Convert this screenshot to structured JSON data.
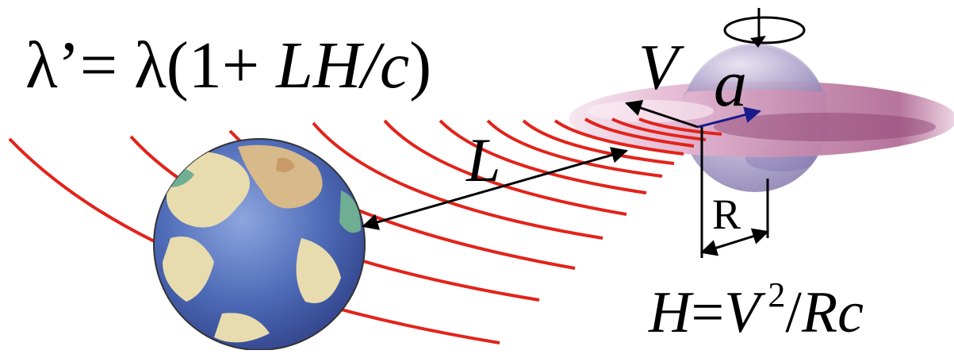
{
  "formulas": {
    "wavelength": {
      "lambda_prime": "λ’",
      "equals_lambda_open": "= λ(1+ ",
      "l": "L",
      "h": "H",
      "slash_c": "/c",
      "close": ")"
    },
    "hubble": {
      "h": "H",
      "equals": "=",
      "v": "V",
      "exponent": "2",
      "slash": "/",
      "rc": "Rc"
    }
  },
  "labels": {
    "distance": "L",
    "velocity": "V",
    "acceleration": "a",
    "radius": "R"
  },
  "colors": {
    "wavefront": "#e2231a",
    "arrow": "#000000",
    "acceleration_arrow": "#1a1a8c",
    "earth_ocean": "#4e6bb8",
    "earth_land": "#e8dcae",
    "disk": "#d9a9c8",
    "sphere": "#bdb4d6"
  },
  "icons": {
    "earth": "earth-globe-icon",
    "rotating_body": "rotating-disk-icon",
    "rotation": "rotation-arrow-icon"
  }
}
